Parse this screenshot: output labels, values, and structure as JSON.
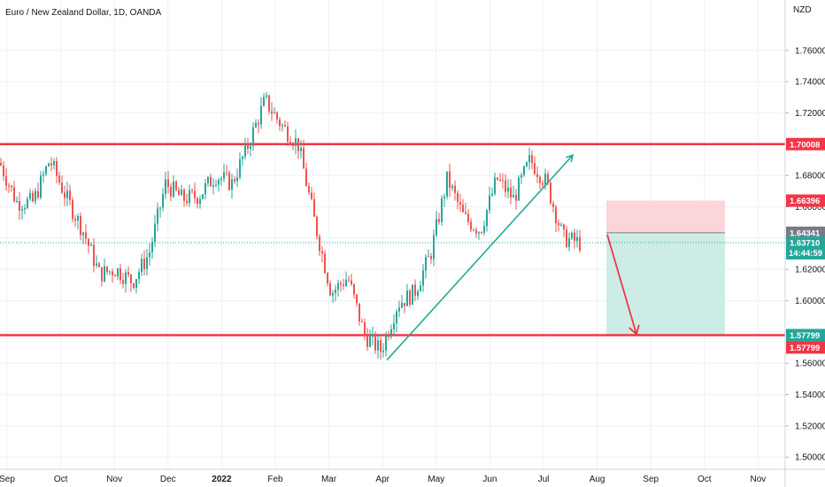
{
  "chart_data": {
    "type": "candlestick",
    "title": "Euro / New Zealand Dollar, 1D, OANDA",
    "currency_label": "NZD",
    "ylim": [
      1.484,
      1.784
    ],
    "y_ticks": [
      "1.76000",
      "1.74000",
      "1.72000",
      "1.70000",
      "1.68000",
      "1.66000",
      "1.64000",
      "1.62000",
      "1.60000",
      "1.58000",
      "1.56000",
      "1.54000",
      "1.52000",
      "1.50000"
    ],
    "x_ticks": [
      "Sep",
      "Oct",
      "Nov",
      "Dec",
      "2022",
      "Feb",
      "Mar",
      "Apr",
      "May",
      "Jun",
      "Jul",
      "Aug",
      "Sep",
      "Oct",
      "Nov"
    ],
    "grid": true,
    "colors": {
      "up": "#26a69a",
      "down": "#ef5350",
      "level_line": "#f23645",
      "trend_line": "#22ab94",
      "arrow": "#f23645",
      "stop_zone": "#fbd5d7",
      "target_zone": "#cdece6",
      "entry_line": "#787b86",
      "grid": "#eef0f3",
      "axis_text": "#131722"
    },
    "anchors": [
      {
        "month": "Sep",
        "price": 1.688
      },
      {
        "month": "Sep",
        "price": 1.663
      },
      {
        "month": "Oct",
        "price": 1.663
      },
      {
        "month": "Oct",
        "price": 1.69
      },
      {
        "month": "Oct",
        "price": 1.666
      },
      {
        "month": "Oct",
        "price": 1.645
      },
      {
        "month": "Nov",
        "price": 1.617
      },
      {
        "month": "Nov",
        "price": 1.62
      },
      {
        "month": "Dec",
        "price": 1.612
      },
      {
        "month": "Dec",
        "price": 1.63
      },
      {
        "month": "Dec",
        "price": 1.675
      },
      {
        "month": "Dec",
        "price": 1.665
      },
      {
        "month": "2022",
        "price": 1.667
      },
      {
        "month": "2022",
        "price": 1.68
      },
      {
        "month": "2022",
        "price": 1.675
      },
      {
        "month": "Feb",
        "price": 1.7
      },
      {
        "month": "Feb",
        "price": 1.728
      },
      {
        "month": "Feb",
        "price": 1.712
      },
      {
        "month": "Mar",
        "price": 1.7
      },
      {
        "month": "Mar",
        "price": 1.65
      },
      {
        "month": "Mar",
        "price": 1.605
      },
      {
        "month": "Mar",
        "price": 1.615
      },
      {
        "month": "Apr",
        "price": 1.578
      },
      {
        "month": "Apr",
        "price": 1.568
      },
      {
        "month": "Apr",
        "price": 1.598
      },
      {
        "month": "May",
        "price": 1.605
      },
      {
        "month": "May",
        "price": 1.63
      },
      {
        "month": "May",
        "price": 1.678
      },
      {
        "month": "May",
        "price": 1.653
      },
      {
        "month": "Jun",
        "price": 1.645
      },
      {
        "month": "Jun",
        "price": 1.678
      },
      {
        "month": "Jun",
        "price": 1.665
      },
      {
        "month": "Jul",
        "price": 1.69
      },
      {
        "month": "Jul",
        "price": 1.675
      },
      {
        "month": "Jul",
        "price": 1.64
      },
      {
        "month": "Jul",
        "price": 1.637
      }
    ],
    "levels": [
      {
        "label": "1.70008",
        "price": 1.70008
      },
      {
        "label": "1.57799",
        "price": 1.57799
      }
    ],
    "price_badges": [
      {
        "label": "1.70008",
        "price": 1.70008,
        "color": "#f23645"
      },
      {
        "label": "1.66396",
        "price": 1.66396,
        "color": "#f23645"
      },
      {
        "label": "1.64341",
        "price": 1.64341,
        "color": "#787b86"
      },
      {
        "label": "1.63710",
        "sub": "14:44:59",
        "price": 1.6371,
        "color": "#26a69a"
      },
      {
        "label": "1.57799",
        "price": 1.57799,
        "color": "#26a69a"
      },
      {
        "label": "1.57799",
        "price": 1.57799,
        "color": "#f23645",
        "offset": 14
      }
    ],
    "position": {
      "entry": 1.64341,
      "stop": 1.66396,
      "target": 1.57799
    },
    "trend_line": [
      {
        "label": "Apr",
        "price": 1.562
      },
      {
        "label": "Jul",
        "price": 1.693
      }
    ]
  }
}
